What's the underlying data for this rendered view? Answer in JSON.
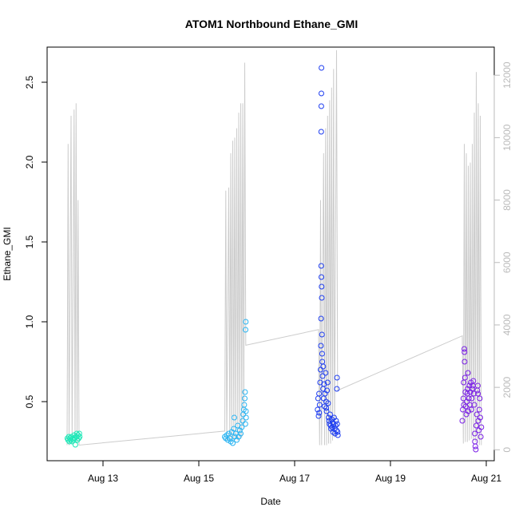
{
  "chart_data": {
    "type": "scatter",
    "title": "ATOM1 Northbound Ethane_GMI",
    "xlabel": "Date",
    "ylabel": "Ethane_GMI",
    "x_axis": {
      "type": "date",
      "range": [
        "2016-08-11T20:00",
        "2016-08-21T04:00"
      ],
      "ticks": [
        {
          "value": "2016-08-13",
          "label": "Aug 13"
        },
        {
          "value": "2016-08-15",
          "label": "Aug 15"
        },
        {
          "value": "2016-08-17",
          "label": "Aug 17"
        },
        {
          "value": "2016-08-19",
          "label": "Aug 19"
        },
        {
          "value": "2016-08-21",
          "label": "Aug 21"
        }
      ]
    },
    "y_axis": {
      "range": [
        0.13,
        2.72
      ],
      "ticks": [
        0.5,
        1.0,
        1.5,
        2.0,
        2.5
      ],
      "tick_labels": [
        "0.5",
        "1.0",
        "1.5",
        "2.0",
        "2.5"
      ]
    },
    "y2_axis": {
      "range": [
        -350,
        12900
      ],
      "ticks": [
        0,
        2000,
        4000,
        6000,
        8000,
        10000,
        12000
      ],
      "tick_labels": [
        "0",
        "2000",
        "4000",
        "6000",
        "8000",
        "10000",
        "12000"
      ],
      "color": "#bbbbbb"
    },
    "altitude_trace": {
      "color": "#cccccc",
      "axis": "right",
      "points": [
        [
          "2016-08-12T06:00",
          150
        ],
        [
          "2016-08-12T06:30",
          9800
        ],
        [
          "2016-08-12T07:00",
          150
        ],
        [
          "2016-08-12T08:00",
          10700
        ],
        [
          "2016-08-12T08:30",
          200
        ],
        [
          "2016-08-12T09:30",
          10900
        ],
        [
          "2016-08-12T10:00",
          250
        ],
        [
          "2016-08-12T10:30",
          11100
        ],
        [
          "2016-08-12T11:00",
          200
        ],
        [
          "2016-08-12T11:30",
          8000
        ],
        [
          "2016-08-12T12:00",
          150
        ],
        [
          "2016-08-15T13:00",
          600
        ],
        [
          "2016-08-15T13:30",
          8300
        ],
        [
          "2016-08-15T14:00",
          300
        ],
        [
          "2016-08-15T15:00",
          8400
        ],
        [
          "2016-08-15T15:30",
          250
        ],
        [
          "2016-08-15T16:00",
          9500
        ],
        [
          "2016-08-15T16:30",
          300
        ],
        [
          "2016-08-15T17:00",
          9900
        ],
        [
          "2016-08-15T17:30",
          300
        ],
        [
          "2016-08-15T18:00",
          10000
        ],
        [
          "2016-08-15T18:30",
          350
        ],
        [
          "2016-08-15T19:00",
          10300
        ],
        [
          "2016-08-15T19:30",
          300
        ],
        [
          "2016-08-15T20:00",
          10800
        ],
        [
          "2016-08-15T20:30",
          350
        ],
        [
          "2016-08-15T21:00",
          11100
        ],
        [
          "2016-08-15T21:30",
          400
        ],
        [
          "2016-08-15T22:00",
          11100
        ],
        [
          "2016-08-15T22:30",
          700
        ],
        [
          "2016-08-15T23:00",
          12400
        ],
        [
          "2016-08-15T23:30",
          3350
        ],
        [
          "2016-08-17T12:00",
          3850
        ],
        [
          "2016-08-17T12:30",
          150
        ],
        [
          "2016-08-17T13:00",
          8000
        ],
        [
          "2016-08-17T13:30",
          150
        ],
        [
          "2016-08-17T14:30",
          9500
        ],
        [
          "2016-08-17T15:00",
          150
        ],
        [
          "2016-08-17T15:30",
          10300
        ],
        [
          "2016-08-17T16:00",
          150
        ],
        [
          "2016-08-17T16:30",
          10700
        ],
        [
          "2016-08-17T17:00",
          200
        ],
        [
          "2016-08-17T17:30",
          11200
        ],
        [
          "2016-08-17T18:00",
          200
        ],
        [
          "2016-08-17T18:30",
          11600
        ],
        [
          "2016-08-17T19:00",
          300
        ],
        [
          "2016-08-17T19:30",
          12200
        ],
        [
          "2016-08-17T20:00",
          400
        ],
        [
          "2016-08-17T21:00",
          12800
        ],
        [
          "2016-08-17T21:30",
          1900
        ],
        [
          "2016-08-20T12:00",
          3650
        ],
        [
          "2016-08-20T12:30",
          200
        ],
        [
          "2016-08-20T13:00",
          9800
        ],
        [
          "2016-08-20T13:30",
          250
        ],
        [
          "2016-08-20T14:00",
          9500
        ],
        [
          "2016-08-20T14:30",
          250
        ],
        [
          "2016-08-20T15:00",
          9100
        ],
        [
          "2016-08-20T15:30",
          300
        ],
        [
          "2016-08-20T16:00",
          9200
        ],
        [
          "2016-08-20T16:30",
          350
        ],
        [
          "2016-08-20T17:00",
          9800
        ],
        [
          "2016-08-20T17:30",
          300
        ],
        [
          "2016-08-20T18:00",
          10800
        ],
        [
          "2016-08-20T18:30",
          250
        ],
        [
          "2016-08-20T19:00",
          12100
        ],
        [
          "2016-08-20T19:30",
          200
        ],
        [
          "2016-08-20T20:00",
          11100
        ],
        [
          "2016-08-20T20:30",
          150
        ],
        [
          "2016-08-20T21:00",
          10700
        ],
        [
          "2016-08-20T21:30",
          150
        ]
      ]
    },
    "series": [
      {
        "color": "#1fe8b8",
        "points": [
          [
            "2016-08-12T06:10",
            0.27
          ],
          [
            "2016-08-12T06:30",
            0.26
          ],
          [
            "2016-08-12T06:50",
            0.28
          ],
          [
            "2016-08-12T07:10",
            0.25
          ],
          [
            "2016-08-12T07:30",
            0.27
          ],
          [
            "2016-08-12T07:50",
            0.26
          ],
          [
            "2016-08-12T08:10",
            0.28
          ],
          [
            "2016-08-12T08:30",
            0.25
          ],
          [
            "2016-08-12T08:50",
            0.27
          ],
          [
            "2016-08-12T09:10",
            0.26
          ],
          [
            "2016-08-12T09:30",
            0.29
          ],
          [
            "2016-08-12T09:50",
            0.27
          ],
          [
            "2016-08-12T10:10",
            0.23
          ],
          [
            "2016-08-12T10:30",
            0.28
          ],
          [
            "2016-08-12T10:50",
            0.3
          ],
          [
            "2016-08-12T11:10",
            0.26
          ],
          [
            "2016-08-12T11:30",
            0.29
          ],
          [
            "2016-08-12T11:50",
            0.27
          ],
          [
            "2016-08-12T12:10",
            0.3
          ],
          [
            "2016-08-12T12:20",
            0.28
          ]
        ]
      },
      {
        "color": "#2ab4f2",
        "points": [
          [
            "2016-08-15T13:00",
            0.28
          ],
          [
            "2016-08-15T13:30",
            0.27
          ],
          [
            "2016-08-15T14:00",
            0.29
          ],
          [
            "2016-08-15T14:30",
            0.26
          ],
          [
            "2016-08-15T15:00",
            0.3
          ],
          [
            "2016-08-15T15:30",
            0.27
          ],
          [
            "2016-08-15T16:00",
            0.25
          ],
          [
            "2016-08-15T16:30",
            0.31
          ],
          [
            "2016-08-15T17:00",
            0.24
          ],
          [
            "2016-08-15T17:30",
            0.33
          ],
          [
            "2016-08-15T17:45",
            0.4
          ],
          [
            "2016-08-15T18:00",
            0.28
          ],
          [
            "2016-08-15T18:30",
            0.3
          ],
          [
            "2016-08-15T19:00",
            0.26
          ],
          [
            "2016-08-15T19:30",
            0.35
          ],
          [
            "2016-08-15T20:00",
            0.28
          ],
          [
            "2016-08-15T20:30",
            0.32
          ],
          [
            "2016-08-15T21:00",
            0.3
          ],
          [
            "2016-08-15T21:30",
            0.34
          ],
          [
            "2016-08-15T22:00",
            0.38
          ],
          [
            "2016-08-15T22:15",
            0.42
          ],
          [
            "2016-08-15T22:30",
            0.45
          ],
          [
            "2016-08-15T22:45",
            0.48
          ],
          [
            "2016-08-15T23:00",
            0.52
          ],
          [
            "2016-08-15T23:10",
            0.56
          ],
          [
            "2016-08-15T23:20",
            0.36
          ],
          [
            "2016-08-15T23:25",
            0.95
          ],
          [
            "2016-08-15T23:30",
            1.0
          ],
          [
            "2016-08-15T23:35",
            0.44
          ],
          [
            "2016-08-15T23:40",
            0.4
          ]
        ]
      },
      {
        "color": "#1f3ef0",
        "points": [
          [
            "2016-08-17T11:30",
            0.45
          ],
          [
            "2016-08-17T11:45",
            0.52
          ],
          [
            "2016-08-17T12:00",
            0.41
          ],
          [
            "2016-08-17T12:15",
            0.55
          ],
          [
            "2016-08-17T12:30",
            0.48
          ],
          [
            "2016-08-17T12:45",
            0.62
          ],
          [
            "2016-08-17T13:00",
            0.7
          ],
          [
            "2016-08-17T13:10",
            0.85
          ],
          [
            "2016-08-17T13:15",
            1.02
          ],
          [
            "2016-08-17T13:20",
            1.35
          ],
          [
            "2016-08-17T13:25",
            1.28
          ],
          [
            "2016-08-17T13:30",
            1.22
          ],
          [
            "2016-08-17T13:35",
            1.15
          ],
          [
            "2016-08-17T13:40",
            0.92
          ],
          [
            "2016-08-17T13:45",
            0.8
          ],
          [
            "2016-08-17T13:20",
            2.19
          ],
          [
            "2016-08-17T13:22",
            2.35
          ],
          [
            "2016-08-17T13:24",
            2.43
          ],
          [
            "2016-08-17T13:26",
            2.59
          ],
          [
            "2016-08-17T14:00",
            0.66
          ],
          [
            "2016-08-17T14:15",
            0.58
          ],
          [
            "2016-08-17T14:30",
            0.52
          ],
          [
            "2016-08-17T14:45",
            0.61
          ],
          [
            "2016-08-17T15:00",
            0.47
          ],
          [
            "2016-08-17T15:15",
            0.55
          ],
          [
            "2016-08-17T15:30",
            0.68
          ],
          [
            "2016-08-17T15:45",
            0.5
          ],
          [
            "2016-08-17T16:00",
            0.44
          ],
          [
            "2016-08-17T16:15",
            0.57
          ],
          [
            "2016-08-17T16:30",
            0.62
          ],
          [
            "2016-08-17T16:45",
            0.49
          ],
          [
            "2016-08-17T17:00",
            0.4
          ],
          [
            "2016-08-17T17:15",
            0.38
          ],
          [
            "2016-08-17T17:30",
            0.36
          ],
          [
            "2016-08-17T17:45",
            0.42
          ],
          [
            "2016-08-17T18:00",
            0.35
          ],
          [
            "2016-08-17T18:15",
            0.33
          ],
          [
            "2016-08-17T18:30",
            0.39
          ],
          [
            "2016-08-17T18:45",
            0.34
          ],
          [
            "2016-08-17T19:00",
            0.37
          ],
          [
            "2016-08-17T19:15",
            0.31
          ],
          [
            "2016-08-17T19:30",
            0.36
          ],
          [
            "2016-08-17T19:45",
            0.4
          ],
          [
            "2016-08-17T20:00",
            0.33
          ],
          [
            "2016-08-17T20:15",
            0.3
          ],
          [
            "2016-08-17T20:30",
            0.35
          ],
          [
            "2016-08-17T20:45",
            0.38
          ],
          [
            "2016-08-17T21:00",
            0.32
          ],
          [
            "2016-08-17T21:10",
            0.58
          ],
          [
            "2016-08-17T21:15",
            0.65
          ],
          [
            "2016-08-17T21:20",
            0.36
          ],
          [
            "2016-08-17T21:30",
            0.31
          ],
          [
            "2016-08-17T21:40",
            0.29
          ],
          [
            "2016-08-17T13:50",
            0.75
          ],
          [
            "2016-08-17T14:20",
            0.72
          ],
          [
            "2016-08-17T12:20",
            0.43
          ],
          [
            "2016-08-17T15:50",
            0.46
          ]
        ]
      },
      {
        "color": "#7a1fe6",
        "points": [
          [
            "2016-08-20T12:00",
            0.38
          ],
          [
            "2016-08-20T12:15",
            0.45
          ],
          [
            "2016-08-20T12:30",
            0.52
          ],
          [
            "2016-08-20T12:45",
            0.48
          ],
          [
            "2016-08-20T13:00",
            0.83
          ],
          [
            "2016-08-20T13:05",
            0.81
          ],
          [
            "2016-08-20T13:10",
            0.75
          ],
          [
            "2016-08-20T13:20",
            0.65
          ],
          [
            "2016-08-20T13:30",
            0.56
          ],
          [
            "2016-08-20T13:45",
            0.47
          ],
          [
            "2016-08-20T14:00",
            0.42
          ],
          [
            "2016-08-20T14:15",
            0.5
          ],
          [
            "2016-08-20T14:30",
            0.55
          ],
          [
            "2016-08-20T14:45",
            0.58
          ],
          [
            "2016-08-20T15:00",
            0.44
          ],
          [
            "2016-08-20T15:15",
            0.52
          ],
          [
            "2016-08-20T15:30",
            0.6
          ],
          [
            "2016-08-20T15:45",
            0.48
          ],
          [
            "2016-08-20T16:00",
            0.56
          ],
          [
            "2016-08-20T16:15",
            0.62
          ],
          [
            "2016-08-20T16:30",
            0.45
          ],
          [
            "2016-08-20T16:45",
            0.52
          ],
          [
            "2016-08-20T17:00",
            0.58
          ],
          [
            "2016-08-20T17:15",
            0.6
          ],
          [
            "2016-08-20T17:30",
            0.63
          ],
          [
            "2016-08-20T17:45",
            0.55
          ],
          [
            "2016-08-20T18:00",
            0.48
          ],
          [
            "2016-08-20T18:15",
            0.3
          ],
          [
            "2016-08-20T18:30",
            0.22
          ],
          [
            "2016-08-20T18:45",
            0.2
          ],
          [
            "2016-08-20T19:00",
            0.35
          ],
          [
            "2016-08-20T19:15",
            0.42
          ],
          [
            "2016-08-20T19:30",
            0.57
          ],
          [
            "2016-08-20T19:45",
            0.6
          ],
          [
            "2016-08-20T20:00",
            0.38
          ],
          [
            "2016-08-20T20:15",
            0.32
          ],
          [
            "2016-08-20T20:30",
            0.45
          ],
          [
            "2016-08-20T20:45",
            0.52
          ],
          [
            "2016-08-20T21:00",
            0.4
          ],
          [
            "2016-08-20T21:15",
            0.28
          ],
          [
            "2016-08-20T21:30",
            0.34
          ],
          [
            "2016-08-20T12:40",
            0.62
          ],
          [
            "2016-08-20T14:50",
            0.68
          ],
          [
            "2016-08-20T18:20",
            0.25
          ],
          [
            "2016-08-20T19:50",
            0.55
          ]
        ]
      }
    ],
    "grid": false,
    "legend": "none"
  }
}
